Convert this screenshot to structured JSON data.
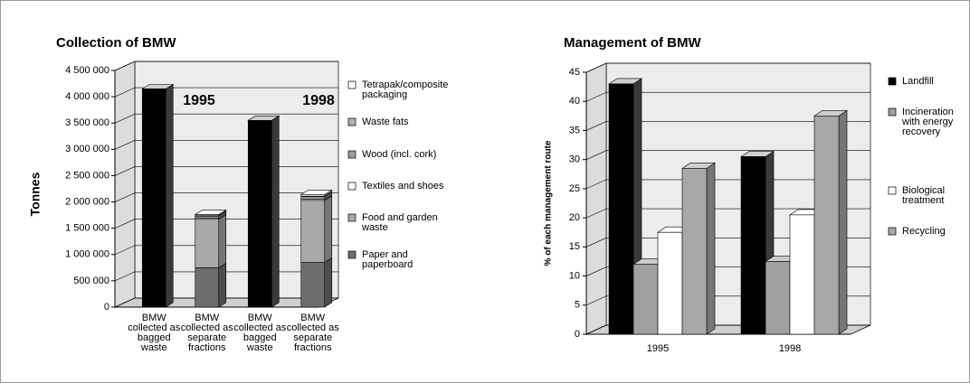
{
  "chart_data": [
    {
      "type": "bar",
      "stacked": true,
      "three_d": true,
      "grid": true,
      "legend": "right",
      "title": "Collection of BMW",
      "y_label": "Tonnes",
      "annotations": [
        "1995",
        "1998"
      ],
      "categories": [
        "BMW collected as bagged waste",
        "BMW collected as separate fractions",
        "BMW collected as bagged waste",
        "BMW collected as separate fractions"
      ],
      "series": [
        {
          "color": "#000000",
          "values": [
            4150000,
            null,
            3550000,
            null
          ]
        },
        {
          "name": "Paper and paperboard",
          "color": "#6e6e6e",
          "values": [
            null,
            750000,
            null,
            850000
          ]
        },
        {
          "name": "Food and garden waste",
          "color": "#a9a9a9",
          "values": [
            null,
            920000,
            null,
            1180000
          ]
        },
        {
          "name": "Textiles and shoes",
          "color": "#ffffff",
          "values": [
            null,
            20000,
            null,
            20000
          ]
        },
        {
          "name": "Wood (incl. cork)",
          "color": "#9a9a9a",
          "values": [
            null,
            40000,
            null,
            50000
          ]
        },
        {
          "name": "Waste fats",
          "color": "#b0b0b0",
          "values": [
            null,
            10000,
            null,
            10000
          ]
        },
        {
          "name": "Tetrapak/composite packaging",
          "color": "#ffffff",
          "values": [
            null,
            20000,
            null,
            30000
          ]
        }
      ],
      "ylim": [
        0,
        4500000
      ],
      "yticks": [
        {
          "value": 0,
          "label": "0"
        },
        {
          "value": 500000,
          "label": "500 000"
        },
        {
          "value": 1000000,
          "label": "1 000 000"
        },
        {
          "value": 1500000,
          "label": "1 500 000"
        },
        {
          "value": 2000000,
          "label": "2 000 000"
        },
        {
          "value": 2500000,
          "label": "2 500 000"
        },
        {
          "value": 3000000,
          "label": "3 000 000"
        },
        {
          "value": 3500000,
          "label": "3 500 000"
        },
        {
          "value": 4000000,
          "label": "4 000 000"
        },
        {
          "value": 4500000,
          "label": "4 500 000"
        }
      ]
    },
    {
      "type": "bar",
      "stacked": false,
      "three_d": true,
      "grid": true,
      "legend": "right",
      "title": "Management of BMW",
      "y_label": "% of each management route",
      "categories": [
        "1995",
        "1998"
      ],
      "series": [
        {
          "name": "Landfill",
          "color": "#000000",
          "values": [
            43,
            30.5
          ]
        },
        {
          "name": "Incineration with energy recovery",
          "color": "#a0a0a0",
          "values": [
            12,
            12.5
          ]
        },
        {
          "name": "Biological treatment",
          "color": "#ffffff",
          "values": [
            17.5,
            20.5
          ]
        },
        {
          "name": "Recycling",
          "color": "#a8a8a8",
          "values": [
            28.5,
            37.5
          ]
        }
      ],
      "ylim": [
        0,
        45
      ],
      "yticks": [
        0,
        5,
        10,
        15,
        20,
        25,
        30,
        35,
        40,
        45
      ]
    }
  ]
}
